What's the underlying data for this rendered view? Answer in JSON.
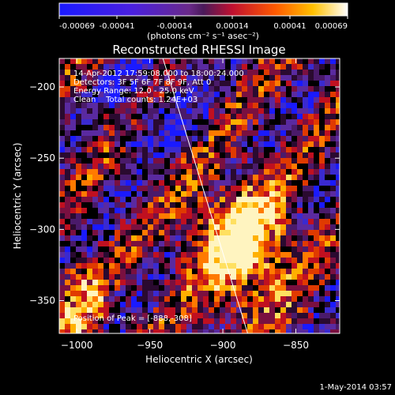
{
  "chart_data": {
    "type": "heatmap",
    "title": "Reconstructed RHESSI Image",
    "xlabel": "Heliocentric X (arcsec)",
    "ylabel": "Heliocentric Y (arcsec)",
    "xlim": [
      -1012,
      -820
    ],
    "ylim": [
      -373,
      -180
    ],
    "x_ticks": [
      -1000,
      -950,
      -900,
      -850
    ],
    "y_ticks": [
      -200,
      -250,
      -300,
      -350
    ],
    "colorbar": {
      "ticks": [
        "-0.00069",
        "-0.00041",
        "-0.00014",
        "0.00014",
        "0.00041",
        "0.00069"
      ],
      "unit_label": "(photons cm⁻² s⁻¹ asec⁻²)",
      "range": [
        -0.00069,
        0.00069
      ]
    },
    "annotations": {
      "time": "14-Apr-2012 17:59:08.000 to 18:00:24.000",
      "detectors": "Detectors: 3F 5F 6F 7F 8F 9F, Att 0",
      "energy": "Energy Range: 12.0 - 25.0 keV",
      "method": "Clean    Total counts: 1.24E+03",
      "peak": "Position of Peak = [-888,-308]"
    },
    "peak": [
      -888,
      -308
    ],
    "limb_line": {
      "top": [
        -941,
        -180
      ],
      "bottom": [
        -883,
        -373
      ]
    },
    "footer_date": "1-May-2014 03:57"
  }
}
